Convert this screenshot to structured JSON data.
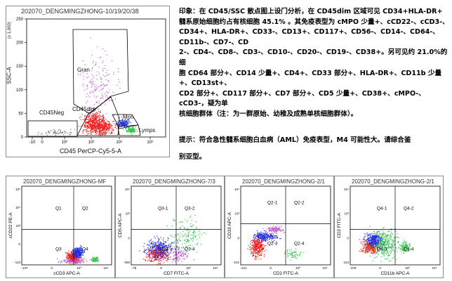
{
  "main_plot": {
    "title": "202070_DENGMINGZHONG-10/19/20/38",
    "y_axis_label": "SSC-A",
    "y_exponent": "(x 1,000)",
    "y_ticks": [
      "0",
      "50",
      "100",
      "150",
      "200",
      "250"
    ],
    "x_axis_label": "CD45 PerCP-Cy5-5-A",
    "x_ticks": [
      "-10",
      "0",
      "10²",
      "10³",
      "10⁴",
      "10⁵"
    ],
    "gates": {
      "gran": "Gran",
      "cd45dim": "CD45dim",
      "mon": "Mon",
      "lymps": "Lymps",
      "cd45neg": "CD45Neg"
    }
  },
  "report": {
    "lines": [
      "印象：在 CD45/SSC 散点图上设门分析，在 CD45dim 区域可见 CD34+HLA-DR+",
      "髓系原始细胞约占有核细胞 45.1% 。其免疫表型为 cMPO 少量+、cCD22-、cCD3-、",
      "CD34+、HLA-DR+、CD33-、CD13+、CD117+、CD56-、CD14-、CD64-、CD11b-、CD7-、CD",
      "2-、CD4-、CD8-、CD3-、CD10-、CD20-、CD19-、CD38+。另可见约 21.0%的细",
      "胞 CD64 部分+、CD14 少量+、CD4+、CD33 部分+、HLA-DR+、CD11b 少量+、CD13st+、",
      "CD2 部分+、CD117 部分+、CD7 部分+、CD5 少量+、CD38+、cMPO-、cCD3-，疑为单",
      "核细胞群体（注：为一群原始、幼稚及成熟单核细胞群体）。"
    ],
    "hint_lines": [
      "提示：符合急性髓系细胞白血病（AML）免疫表型，M4 可能性大。请综合鉴",
      "别亚型。"
    ]
  },
  "bottom_plots": [
    {
      "title": "202070_DENGMINGZHONG-MF",
      "x_label": "cCD3 APC-A",
      "y_label": "cCD22 PE-A",
      "quadrants": [
        "Q1",
        "Q2",
        "Q3",
        "Q4"
      ],
      "x_ticks": [
        "-137",
        "0",
        "10³",
        "10⁴"
      ],
      "y_ticks": [
        "-113",
        "0",
        "10³",
        "10⁴",
        "10⁵"
      ]
    },
    {
      "title": "202070_DENGMINGZHONG-7/3",
      "x_label": "CD7 FITC-A",
      "y_label": "CD5 APC-A",
      "quadrants": [
        "Q3-1",
        "Q3-2",
        "Q3-3",
        "Q3-4"
      ],
      "x_ticks": [
        "-79",
        "0",
        "10³",
        "10⁴"
      ],
      "y_ticks": [
        "-349",
        "0",
        "10³",
        "10⁴"
      ]
    },
    {
      "title": "202070_DENGMINGZHONG-2/1",
      "x_label": "CD2 FITC-A",
      "y_label": "CD33 APC-A",
      "quadrants": [
        "Q2-1",
        "Q2-2",
        "Q2-3",
        "Q2-4"
      ],
      "x_ticks": [
        "-121",
        "0",
        "10³",
        "10⁴"
      ],
      "y_ticks": [
        "-101",
        "0",
        "10³",
        "10⁴"
      ]
    },
    {
      "title": "202070_DENGMINGZHONG-2/1",
      "x_label": "CD11b APC-A",
      "y_label": "CD2 FITC-A",
      "quadrants": [
        "Q4-1",
        "Q4-2",
        "Q4-3",
        "Q4-4"
      ],
      "x_ticks": [
        "-378",
        "0",
        "10³",
        "10⁴"
      ],
      "y_ticks": [
        "-113",
        "0",
        "10³",
        "10⁴"
      ]
    }
  ],
  "colors": {
    "red": "#ee1c1c",
    "blue": "#1e2fe0",
    "green": "#36c24a",
    "violet": "#c45ad0",
    "gray": "#777777"
  }
}
